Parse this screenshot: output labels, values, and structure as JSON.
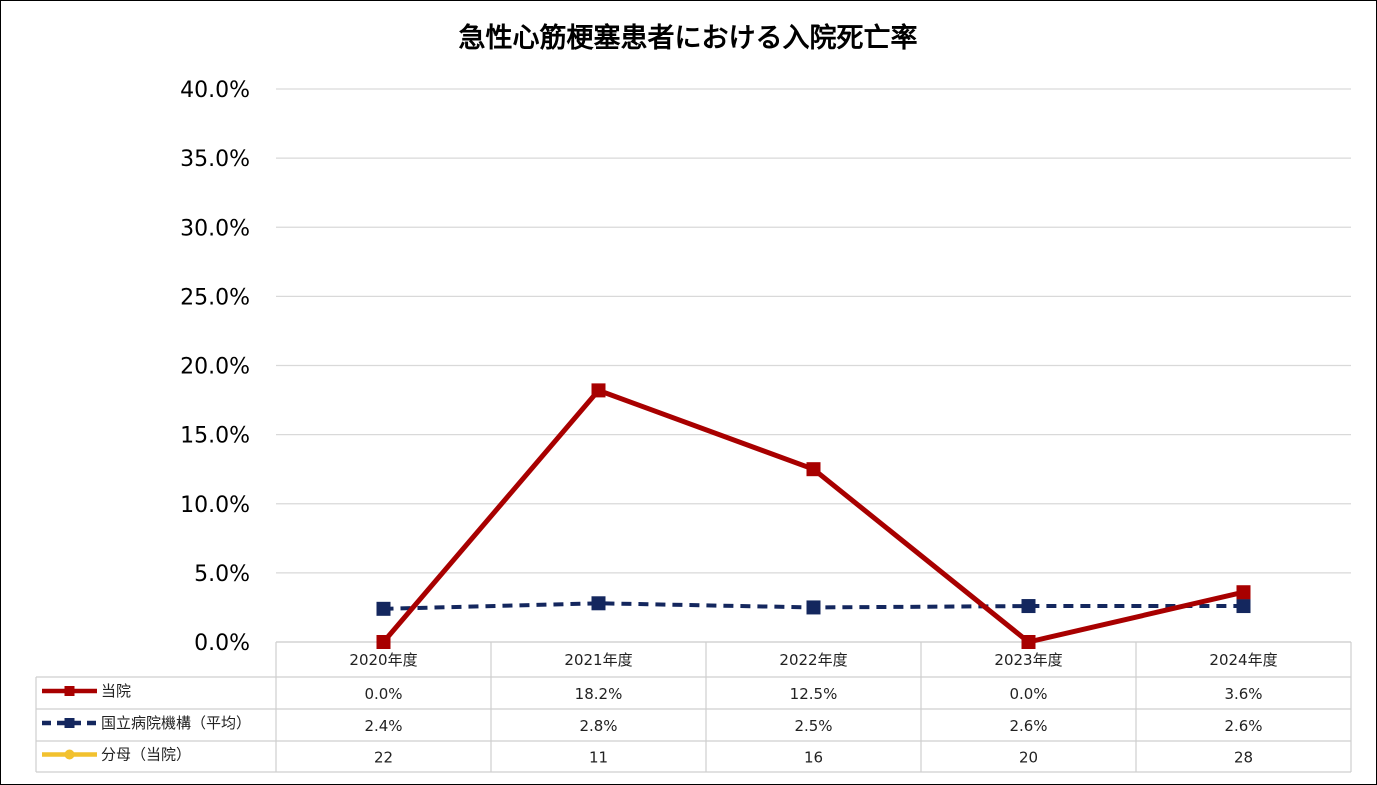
{
  "chart_data": {
    "type": "line",
    "title": "急性心筋梗塞患者における入院死亡率",
    "categories": [
      "2020年度",
      "2021年度",
      "2022年度",
      "2023年度",
      "2024年度"
    ],
    "y_ticks": [
      "0.0%",
      "5.0%",
      "10.0%",
      "15.0%",
      "20.0%",
      "25.0%",
      "30.0%",
      "35.0%",
      "40.0%"
    ],
    "ylim": [
      0,
      40
    ],
    "grid": true,
    "legend_placement": "data-table-left",
    "series": [
      {
        "name": "当院",
        "values": [
          0.0,
          18.2,
          12.5,
          0.0,
          3.6
        ],
        "labels": [
          "0.0%",
          "18.2%",
          "12.5%",
          "0.0%",
          "3.6%"
        ],
        "color": "#a80000",
        "style": "solid",
        "marker": "square",
        "plotted": true
      },
      {
        "name": "国立病院機構（平均）",
        "values": [
          2.4,
          2.8,
          2.5,
          2.6,
          2.6
        ],
        "labels": [
          "2.4%",
          "2.8%",
          "2.5%",
          "2.6%",
          "2.6%"
        ],
        "color": "#14275e",
        "style": "dashed",
        "marker": "square",
        "plotted": true
      },
      {
        "name": "分母（当院）",
        "values": [
          22,
          11,
          16,
          20,
          28
        ],
        "labels": [
          "22",
          "11",
          "16",
          "20",
          "28"
        ],
        "color": "#f2c12e",
        "style": "solid",
        "marker": "circle",
        "plotted": false
      }
    ]
  }
}
